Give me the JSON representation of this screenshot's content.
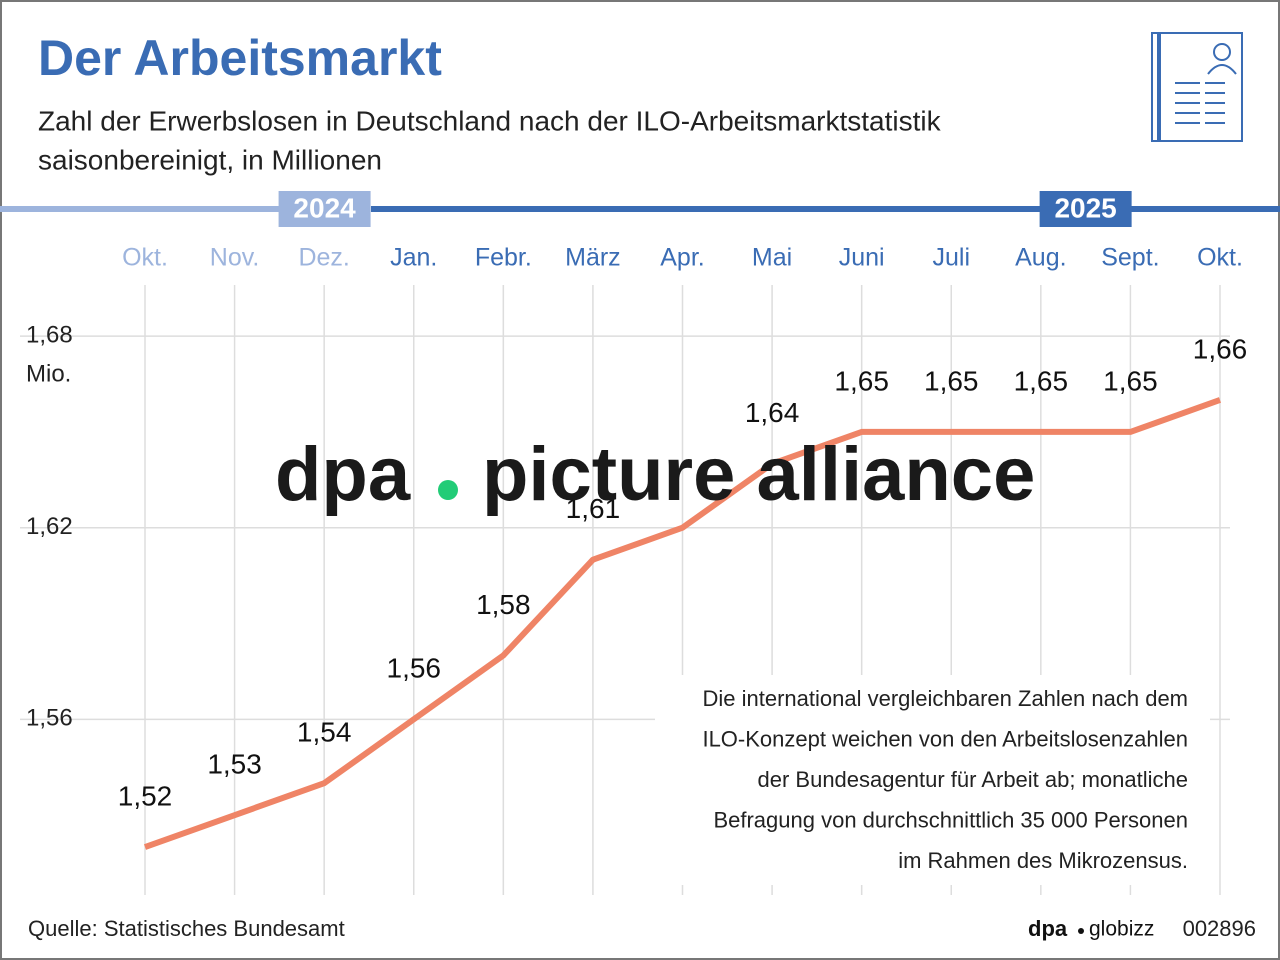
{
  "chart_data": {
    "type": "line",
    "title": "Der Arbeitsmarkt",
    "subtitle": [
      "Zahl der Erwerbslosen in Deutschland nach der ILO-Arbeitsmarktstatistik",
      "saisonbereinigt, in Millionen"
    ],
    "periods": [
      {
        "label": "2024",
        "color": "#9db4dd",
        "count": 3
      },
      {
        "label": "2025",
        "color": "#3a6cb4",
        "count": 10
      }
    ],
    "categories": [
      "Okt.",
      "Nov.",
      "Dez.",
      "Jan.",
      "Febr.",
      "März",
      "Apr.",
      "Mai",
      "Juni",
      "Juli",
      "Aug.",
      "Sept.",
      "Okt."
    ],
    "series": [
      {
        "color": "#ef8466",
        "values": [
          1.52,
          1.53,
          1.54,
          1.56,
          1.58,
          1.61,
          1.62,
          1.64,
          1.65,
          1.65,
          1.65,
          1.65,
          1.66
        ],
        "value_labels": [
          "1,52",
          "1,53",
          "1,54",
          "1,56",
          "1,58",
          "1,61",
          null,
          "1,64",
          "1,65",
          "1,65",
          "1,65",
          "1,65",
          "1,66"
        ]
      }
    ],
    "ylim": [
      1.505,
      1.696
    ],
    "yticks": [
      {
        "value": 1.56,
        "label": "1,56"
      },
      {
        "value": 1.62,
        "label": "1,62"
      },
      {
        "value": 1.68,
        "label": "1,68"
      }
    ],
    "y_unit": "Mio.",
    "grid": true,
    "note": [
      "Die international vergleichbaren Zahlen nach dem",
      "ILO-Konzept weichen von den Arbeitslosenzahlen",
      "der Bundesagentur für Arbeit ab; monatliche",
      "Befragung von durchschnittlich 35 000 Personen",
      "im Rahmen des Mikrozensus."
    ],
    "source": "Quelle: Statistisches Bundesamt",
    "watermark": [
      "dpa",
      "picture alliance"
    ],
    "credit": [
      "dpa",
      "globizz",
      "002896"
    ]
  }
}
